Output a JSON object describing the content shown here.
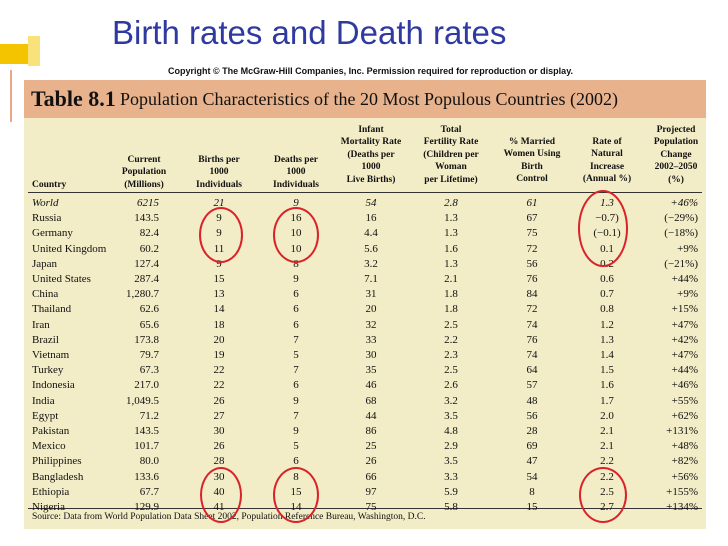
{
  "slide": {
    "title": "Birth rates and Death rates"
  },
  "copyright": "Copyright © The McGraw-Hill Companies, Inc. Permission required for reproduction or display.",
  "table": {
    "number": "Table 8.1",
    "caption": "Population Characteristics of the 20 Most Populous Countries (2002)",
    "columns": [
      "Country",
      "Current\nPopulation\n(Millions)",
      "Births per\n1000\nIndividuals",
      "Deaths per\n1000\nIndividuals",
      "Infant\nMortality Rate\n(Deaths per\n1000\nLive Births)",
      "Total\nFertility Rate\n(Children per\nWoman\nper Lifetime)",
      "% Married\nWomen Using\nBirth\nControl",
      "Rate of\nNatural\nIncrease\n(Annual %)",
      "Projected\nPopulation\nChange\n2002–2050\n(%)"
    ],
    "rows": [
      [
        "World",
        "6215",
        "21",
        "9",
        "54",
        "2.8",
        "61",
        "1.3",
        "+46%"
      ],
      [
        "Russia",
        "143.5",
        "9",
        "16",
        "16",
        "1.3",
        "67",
        "−0.7)",
        "(−29%)"
      ],
      [
        "Germany",
        "82.4",
        "9",
        "10",
        "4.4",
        "1.3",
        "75",
        "(−0.1)",
        "(−18%)"
      ],
      [
        "United Kingdom",
        "60.2",
        "11",
        "10",
        "5.6",
        "1.6",
        "72",
        "0.1",
        "+9%"
      ],
      [
        "Japan",
        "127.4",
        "9",
        "8",
        "3.2",
        "1.3",
        "56",
        "0.2",
        "(−21%)"
      ],
      [
        "United States",
        "287.4",
        "15",
        "9",
        "7.1",
        "2.1",
        "76",
        "0.6",
        "+44%"
      ],
      [
        "China",
        "1,280.7",
        "13",
        "6",
        "31",
        "1.8",
        "84",
        "0.7",
        "+9%"
      ],
      [
        "Thailand",
        "62.6",
        "14",
        "6",
        "20",
        "1.8",
        "72",
        "0.8",
        "+15%"
      ],
      [
        "Iran",
        "65.6",
        "18",
        "6",
        "32",
        "2.5",
        "74",
        "1.2",
        "+47%"
      ],
      [
        "Brazil",
        "173.8",
        "20",
        "7",
        "33",
        "2.2",
        "76",
        "1.3",
        "+42%"
      ],
      [
        "Vietnam",
        "79.7",
        "19",
        "5",
        "30",
        "2.3",
        "74",
        "1.4",
        "+47%"
      ],
      [
        "Turkey",
        "67.3",
        "22",
        "7",
        "35",
        "2.5",
        "64",
        "1.5",
        "+44%"
      ],
      [
        "Indonesia",
        "217.0",
        "22",
        "6",
        "46",
        "2.6",
        "57",
        "1.6",
        "+46%"
      ],
      [
        "India",
        "1,049.5",
        "26",
        "9",
        "68",
        "3.2",
        "48",
        "1.7",
        "+55%"
      ],
      [
        "Egypt",
        "71.2",
        "27",
        "7",
        "44",
        "3.5",
        "56",
        "2.0",
        "+62%"
      ],
      [
        "Pakistan",
        "143.5",
        "30",
        "9",
        "86",
        "4.8",
        "28",
        "2.1",
        "+131%"
      ],
      [
        "Mexico",
        "101.7",
        "26",
        "5",
        "25",
        "2.9",
        "69",
        "2.1",
        "+48%"
      ],
      [
        "Philippines",
        "80.0",
        "28",
        "6",
        "26",
        "3.5",
        "47",
        "2.2",
        "+82%"
      ],
      [
        "Bangladesh",
        "133.6",
        "30",
        "8",
        "66",
        "3.3",
        "54",
        "2.2",
        "+56%"
      ],
      [
        "Ethiopia",
        "67.7",
        "40",
        "15",
        "97",
        "5.9",
        "8",
        "2.5",
        "+155%"
      ],
      [
        "Nigeria",
        "129.9",
        "41",
        "14",
        "75",
        "5.8",
        "15",
        "2.7",
        "+134%"
      ]
    ],
    "source": "Source: Data from World Population Data Sheet 2002, Population Reference Bureau, Washington, D.C."
  },
  "colors": {
    "title": "#2f3aa0",
    "header_band": "#e8b38c",
    "table_bg": "#f2ecc7",
    "highlight_ring": "#d8232a",
    "accent": "#f5c400"
  }
}
